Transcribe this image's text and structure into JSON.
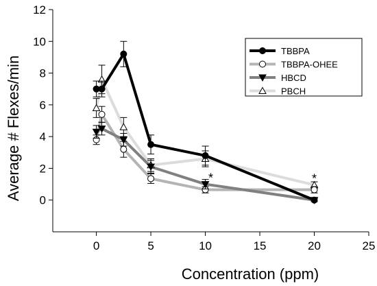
{
  "chart_data": {
    "type": "line",
    "xlabel": "Concentration (ppm)",
    "ylabel": "Average # Flexes/min",
    "xlim": [
      -4,
      25
    ],
    "ylim": [
      -2,
      12
    ],
    "x_ticks": [
      0,
      5,
      10,
      15,
      20,
      25
    ],
    "y_ticks": [
      0,
      2,
      4,
      6,
      8,
      10,
      12
    ],
    "x_tick_labels": [
      "0",
      "5",
      "10",
      "15",
      "20",
      "25"
    ],
    "y_tick_labels": [
      "0",
      "2",
      "4",
      "6",
      "8",
      "10",
      "12"
    ],
    "legend_position": "top-right",
    "series": [
      {
        "name": "TBBPA",
        "color": "#000000",
        "marker": "filled-circle",
        "x": [
          0,
          0.5,
          2.5,
          5,
          10,
          20
        ],
        "y": [
          7.0,
          7.0,
          9.2,
          3.5,
          2.8,
          0.0
        ],
        "err": [
          0.5,
          0.5,
          0.8,
          0.6,
          0.6,
          0.1
        ]
      },
      {
        "name": "TBBPA-OHEE",
        "color": "#b4b4b4",
        "marker": "open-circle",
        "x": [
          0,
          0.5,
          2.5,
          5,
          10,
          20
        ],
        "y": [
          3.8,
          5.4,
          3.2,
          1.35,
          0.65,
          0.65
        ],
        "err": [
          0.3,
          0.5,
          0.5,
          0.3,
          0.2,
          0.2
        ]
      },
      {
        "name": "HBCD",
        "color": "#808080",
        "marker": "filled-triangle-down",
        "x": [
          0,
          0.5,
          2.5,
          5,
          10,
          20
        ],
        "y": [
          4.3,
          4.5,
          3.8,
          2.1,
          1.0,
          0.0
        ],
        "err": [
          0.4,
          0.4,
          0.4,
          0.4,
          0.3,
          0.1
        ]
      },
      {
        "name": "PBCH",
        "color": "#dcdcdc",
        "marker": "open-triangle-up",
        "x": [
          0,
          0.5,
          2.5,
          5,
          10,
          20
        ],
        "y": [
          5.8,
          7.6,
          4.6,
          2.2,
          2.6,
          0.95
        ],
        "err": [
          0.6,
          0.9,
          0.6,
          0.4,
          0.5,
          0.2
        ]
      }
    ],
    "annotations": [
      {
        "text": "*",
        "x": 10.5,
        "y": 1.4
      },
      {
        "text": "*",
        "x": 20,
        "y": 1.35
      }
    ]
  }
}
